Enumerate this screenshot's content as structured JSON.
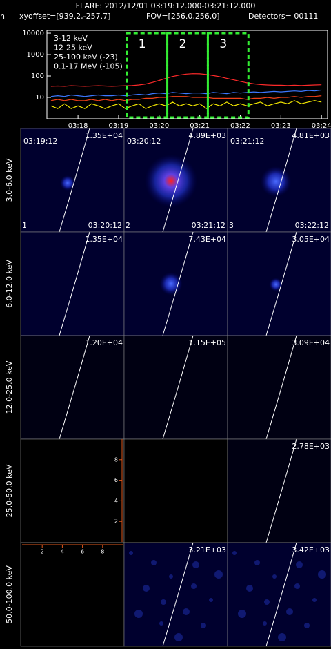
{
  "header": {
    "title": "FLARE: 2012/12/01 03:19:12.000-03:21:12.000",
    "cut_text": "n",
    "xyoffset": "xyoffset=[939.2,-257.7]",
    "fov": "FOV=[256.0,256.0]",
    "detectors": "Detectors= 00111"
  },
  "chart_data": {
    "type": "line",
    "yscale": "log",
    "xlim": [
      "03:17:14",
      "03:24:09"
    ],
    "xticks": [
      "03:18",
      "03:19",
      "03:20",
      "03:21",
      "03:22",
      "03:23",
      "03:24"
    ],
    "ylim": [
      1,
      13500
    ],
    "yticks": [
      10,
      100,
      1000,
      10000
    ],
    "x": [
      "03:17:20",
      "03:17:30",
      "03:17:40",
      "03:17:50",
      "03:18:00",
      "03:18:10",
      "03:18:20",
      "03:18:30",
      "03:18:40",
      "03:18:50",
      "03:19:00",
      "03:19:10",
      "03:19:20",
      "03:19:30",
      "03:19:40",
      "03:19:50",
      "03:20:00",
      "03:20:10",
      "03:20:20",
      "03:20:30",
      "03:20:40",
      "03:20:50",
      "03:21:00",
      "03:21:10",
      "03:21:20",
      "03:21:30",
      "03:21:40",
      "03:21:50",
      "03:22:00",
      "03:22:10",
      "03:22:20",
      "03:22:30",
      "03:22:40",
      "03:22:50",
      "03:23:00",
      "03:23:10",
      "03:23:20",
      "03:23:30",
      "03:23:40",
      "03:23:50",
      "03:24:00"
    ],
    "series": [
      {
        "name": "3-12 keV",
        "color": "#ff2a2a",
        "values": [
          33,
          34,
          33,
          35,
          34,
          33,
          34,
          35,
          34,
          33,
          34,
          35,
          36,
          38,
          42,
          50,
          62,
          78,
          95,
          110,
          122,
          128,
          126,
          118,
          105,
          92,
          78,
          66,
          56,
          48,
          43,
          40,
          38,
          37,
          37,
          36,
          37,
          36,
          37,
          38,
          39
        ]
      },
      {
        "name": "12-25 keV",
        "color": "#f04018",
        "values": [
          7,
          8,
          7,
          8,
          7,
          7,
          8,
          7,
          8,
          7,
          8,
          7,
          8,
          8,
          9,
          9,
          10,
          10,
          11,
          11,
          11,
          10,
          10,
          10,
          9,
          9,
          9,
          9,
          9,
          8,
          9,
          9,
          10,
          9,
          10,
          10,
          11,
          10,
          11,
          11,
          12
        ]
      },
      {
        "name": "25-100 keV (-23)",
        "color": "#f2e600",
        "values": [
          4,
          3,
          5,
          3,
          4,
          3,
          5,
          4,
          3,
          4,
          5,
          3,
          4,
          5,
          3,
          4,
          5,
          4,
          6,
          4,
          5,
          4,
          5,
          3,
          5,
          4,
          6,
          4,
          5,
          4,
          5,
          6,
          4,
          5,
          6,
          5,
          7,
          5,
          6,
          7,
          6
        ]
      },
      {
        "name": "0.1-17 MeV (-105)",
        "color": "#3c78ff",
        "values": [
          11,
          12,
          11,
          13,
          12,
          11,
          12,
          13,
          12,
          12,
          13,
          12,
          13,
          14,
          13,
          15,
          16,
          15,
          17,
          16,
          15,
          16,
          16,
          15,
          17,
          16,
          15,
          17,
          16,
          17,
          18,
          17,
          18,
          19,
          18,
          19,
          20,
          19,
          21,
          20,
          22
        ]
      }
    ],
    "intervals": [
      {
        "label": "1",
        "start": "03:19:12",
        "end": "03:20:12"
      },
      {
        "label": "2",
        "start": "03:20:12",
        "end": "03:21:12"
      },
      {
        "label": "3",
        "start": "03:21:12",
        "end": "03:22:12"
      }
    ],
    "interval_color": "#33ee33"
  },
  "image_grid": {
    "energy_bands": [
      "3.0-6.0 keV",
      "6.0-12.0 keV",
      "12.0-25.0 keV",
      "25.0-50.0 keV",
      "50.0-100.0 keV"
    ],
    "start_times": [
      "03:19:12",
      "03:20:12",
      "03:21:12"
    ],
    "end_times": [
      "03:20:12",
      "03:21:12",
      "03:22:12"
    ],
    "interval_labels": [
      "1",
      "2",
      "3"
    ],
    "max_values": [
      [
        13500,
        4890,
        4810
      ],
      [
        13500,
        74300,
        30500
      ],
      [
        12000,
        115000,
        30900
      ],
      [
        null,
        null,
        2780
      ],
      [
        null,
        3210,
        3420
      ]
    ],
    "max_value_labels": [
      [
        "1.35E+04",
        "4.89E+03",
        "4.81E+03"
      ],
      [
        "1.35E+04",
        "7.43E+04",
        "3.05E+04"
      ],
      [
        "1.20E+04",
        "1.15E+05",
        "3.09E+04"
      ],
      [
        null,
        null,
        "2.78E+03"
      ],
      [
        null,
        "3.21E+03",
        "3.42E+03"
      ]
    ],
    "empty_axis": {
      "lim": [
        0,
        10
      ],
      "ticks": [
        2,
        4,
        6,
        8
      ],
      "color": "#e0581c"
    }
  }
}
